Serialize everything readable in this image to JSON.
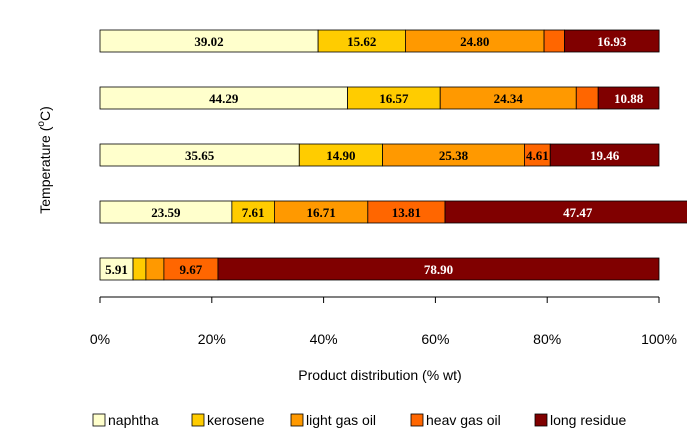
{
  "chart_data": {
    "type": "stacked-bar-horizontal-percent",
    "xlabel": "Product distribution (% wt)",
    "ylabel_prefix": "Temperature (",
    "ylabel_degree": "o",
    "ylabel_suffix": "C)",
    "xlim": [
      0,
      100
    ],
    "xticks": [
      "0%",
      "20%",
      "40%",
      "60%",
      "80%",
      "100%"
    ],
    "legend_position": "bottom",
    "series": [
      {
        "name": "naphtha",
        "color": "#FFFFCC"
      },
      {
        "name": "kerosene",
        "color": "#FFCC00"
      },
      {
        "name": "light gas oil",
        "color": "#FF9900"
      },
      {
        "name": "heav gas oil",
        "color": "#FF6600"
      },
      {
        "name": "long residue",
        "color": "#800000"
      }
    ],
    "bars": [
      {
        "values": [
          39.02,
          15.62,
          24.8,
          3.65,
          16.93
        ],
        "labels": [
          "39.02",
          "15.62",
          "24.80",
          "",
          "16.93"
        ]
      },
      {
        "values": [
          44.29,
          16.57,
          24.34,
          3.92,
          10.88
        ],
        "labels": [
          "44.29",
          "16.57",
          "24.34",
          "",
          "10.88"
        ]
      },
      {
        "values": [
          35.65,
          14.9,
          25.38,
          4.61,
          19.46
        ],
        "labels": [
          "35.65",
          "14.90",
          "25.38",
          "4.61",
          "19.46"
        ]
      },
      {
        "values": [
          23.59,
          7.61,
          16.71,
          13.81,
          47.47
        ],
        "labels": [
          "23.59",
          "7.61",
          "16.71",
          "13.81",
          "47.47"
        ]
      },
      {
        "values": [
          5.91,
          2.3,
          3.22,
          9.67,
          78.9
        ],
        "labels": [
          "5.91",
          "",
          "",
          "9.67",
          "78.90"
        ]
      }
    ]
  }
}
